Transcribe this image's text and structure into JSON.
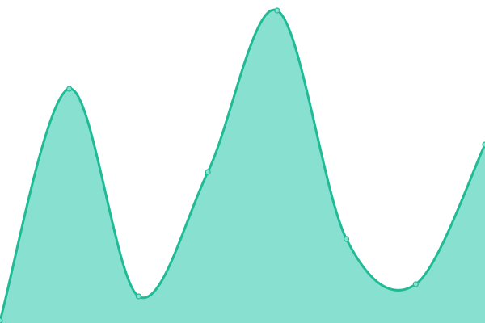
{
  "chart_data": {
    "type": "area",
    "title": "",
    "xlabel": "",
    "ylabel": "",
    "x": [
      0,
      1,
      2,
      3,
      4,
      5,
      6,
      7
    ],
    "values": [
      3,
      290,
      33,
      187,
      387,
      104,
      48,
      221
    ],
    "ylim": [
      0,
      400
    ],
    "grid": false,
    "legend": "none",
    "curve": "smooth",
    "colors": {
      "line": "#1fbb95",
      "fill": "#88e0d0",
      "point_fill": "#88e0d0"
    }
  }
}
